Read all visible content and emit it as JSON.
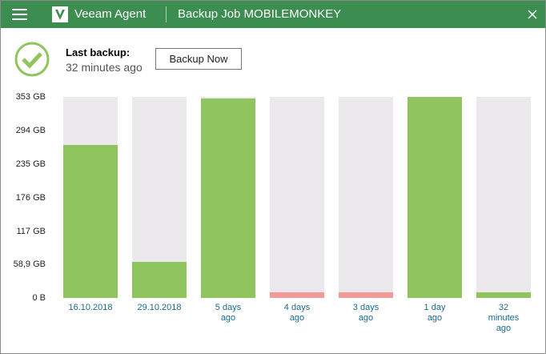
{
  "header": {
    "app_name": "Veeam Agent",
    "job_title": "Backup Job MOBILEMONKEY"
  },
  "status": {
    "label": "Last backup:",
    "time": "32 minutes ago",
    "button": "Backup Now"
  },
  "chart_data": {
    "type": "bar",
    "categories": [
      "16.10.2018",
      "29.10.2018",
      "5 days ago",
      "4 days ago",
      "3 days ago",
      "1 day ago",
      "32 minutes ago"
    ],
    "values": [
      269,
      63,
      350,
      10,
      10,
      353,
      10
    ],
    "colors": [
      "#8fc45f",
      "#8fc45f",
      "#8fc45f",
      "#f29a9a",
      "#f29a9a",
      "#8fc45f",
      "#8fc45f"
    ],
    "track_color": "#ebe9ec",
    "ylim": [
      0,
      353
    ],
    "yticks": [
      {
        "value": 353,
        "label": "353 GB"
      },
      {
        "value": 294,
        "label": "294 GB"
      },
      {
        "value": 235,
        "label": "235 GB"
      },
      {
        "value": 176,
        "label": "176 GB"
      },
      {
        "value": 117,
        "label": "117 GB"
      },
      {
        "value": 58.9,
        "label": "58,9 GB"
      },
      {
        "value": 0,
        "label": "0 B"
      }
    ]
  }
}
